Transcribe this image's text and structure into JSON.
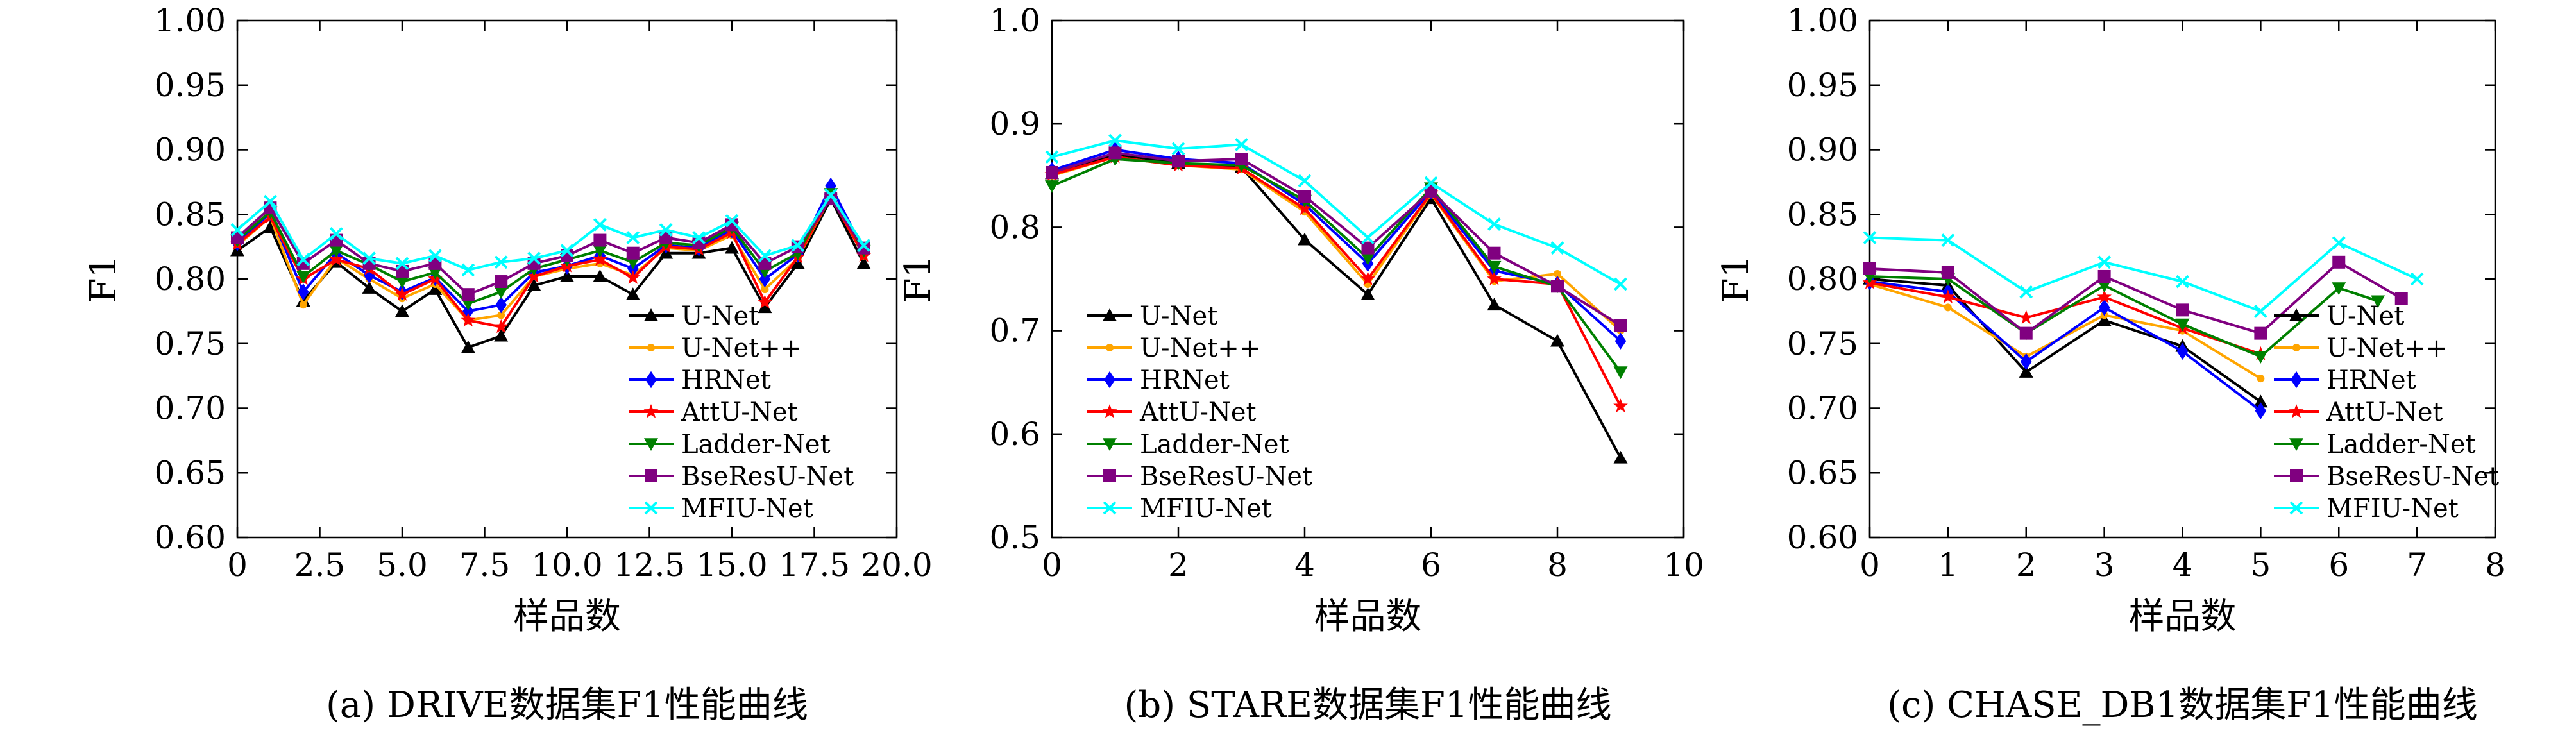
{
  "chart_data": [
    {
      "type": "line",
      "caption": "(a) DRIVE数据集F1性能曲线",
      "xlabel": "样品数",
      "ylabel": "F1",
      "xlim": [
        0,
        20
      ],
      "ylim": [
        0.6,
        1.0
      ],
      "xticks": [
        "0",
        "2.5",
        "5.0",
        "7.5",
        "10.0",
        "12.5",
        "15.0",
        "17.5",
        "20.0"
      ],
      "xtick_values": [
        0,
        2.5,
        5,
        7.5,
        10,
        12.5,
        15,
        17.5,
        20
      ],
      "yticks": [
        "0.60",
        "0.65",
        "0.70",
        "0.75",
        "0.80",
        "0.85",
        "0.90",
        "0.95",
        "1.00"
      ],
      "ytick_values": [
        0.6,
        0.65,
        0.7,
        0.75,
        0.8,
        0.85,
        0.9,
        0.95,
        1.0
      ],
      "legend_position": "lower-right",
      "x": [
        0,
        1,
        2,
        3,
        4,
        5,
        6,
        7,
        8,
        9,
        10,
        11,
        12,
        13,
        14,
        15,
        16,
        17,
        18,
        19
      ],
      "series": [
        {
          "name": "U-Net",
          "values": [
            0.822,
            0.84,
            0.783,
            0.813,
            0.793,
            0.775,
            0.792,
            0.747,
            0.756,
            0.795,
            0.802,
            0.802,
            0.788,
            0.82,
            0.82,
            0.824,
            0.778,
            0.812,
            0.862,
            0.812
          ]
        },
        {
          "name": "U-Net++",
          "values": [
            0.826,
            0.848,
            0.78,
            0.816,
            0.8,
            0.785,
            0.796,
            0.768,
            0.772,
            0.802,
            0.808,
            0.812,
            0.803,
            0.824,
            0.822,
            0.834,
            0.792,
            0.816,
            0.864,
            0.818
          ]
        },
        {
          "name": "HRNet",
          "values": [
            0.828,
            0.851,
            0.79,
            0.82,
            0.803,
            0.79,
            0.801,
            0.775,
            0.78,
            0.805,
            0.81,
            0.818,
            0.808,
            0.826,
            0.824,
            0.838,
            0.8,
            0.819,
            0.872,
            0.822
          ]
        },
        {
          "name": "AttU-Net",
          "values": [
            0.827,
            0.848,
            0.8,
            0.815,
            0.808,
            0.788,
            0.8,
            0.768,
            0.763,
            0.802,
            0.81,
            0.815,
            0.801,
            0.825,
            0.823,
            0.836,
            0.782,
            0.817,
            0.864,
            0.818
          ]
        },
        {
          "name": "Ladder-Net",
          "values": [
            0.83,
            0.852,
            0.802,
            0.822,
            0.811,
            0.798,
            0.805,
            0.781,
            0.79,
            0.808,
            0.815,
            0.822,
            0.813,
            0.828,
            0.826,
            0.84,
            0.806,
            0.82,
            0.866,
            0.822
          ]
        },
        {
          "name": "BseResU-Net",
          "values": [
            0.832,
            0.855,
            0.812,
            0.83,
            0.812,
            0.806,
            0.812,
            0.788,
            0.798,
            0.812,
            0.818,
            0.83,
            0.82,
            0.832,
            0.828,
            0.842,
            0.812,
            0.825,
            0.862,
            0.824
          ]
        },
        {
          "name": "MFIU-Net",
          "values": [
            0.838,
            0.86,
            0.815,
            0.835,
            0.816,
            0.812,
            0.818,
            0.807,
            0.813,
            0.816,
            0.822,
            0.842,
            0.832,
            0.838,
            0.832,
            0.845,
            0.818,
            0.826,
            0.865,
            0.826
          ]
        }
      ]
    },
    {
      "type": "line",
      "caption": "(b) STARE数据集F1性能曲线",
      "xlabel": "样品数",
      "ylabel": "F1",
      "xlim": [
        0,
        10
      ],
      "ylim": [
        0.5,
        1.0
      ],
      "xticks": [
        "0",
        "2",
        "4",
        "6",
        "8",
        "10"
      ],
      "xtick_values": [
        0,
        2,
        4,
        6,
        8,
        10
      ],
      "yticks": [
        "0.5",
        "0.6",
        "0.7",
        "0.8",
        "0.9",
        "1.0"
      ],
      "ytick_values": [
        0.5,
        0.6,
        0.7,
        0.8,
        0.9,
        1.0
      ],
      "legend_position": "lower-left",
      "x": [
        0,
        1,
        2,
        3,
        4,
        5,
        6,
        7,
        8,
        9
      ],
      "series": [
        {
          "name": "U-Net",
          "values": [
            0.852,
            0.87,
            0.862,
            0.858,
            0.788,
            0.735,
            0.828,
            0.725,
            0.69,
            0.577
          ]
        },
        {
          "name": "U-Net++",
          "values": [
            0.85,
            0.868,
            0.86,
            0.856,
            0.815,
            0.745,
            0.832,
            0.748,
            0.755,
            0.7
          ]
        },
        {
          "name": "HRNet",
          "values": [
            0.855,
            0.875,
            0.866,
            0.862,
            0.822,
            0.765,
            0.835,
            0.758,
            0.745,
            0.69
          ]
        },
        {
          "name": "AttU-Net",
          "values": [
            0.851,
            0.868,
            0.86,
            0.857,
            0.818,
            0.75,
            0.833,
            0.75,
            0.745,
            0.627
          ]
        },
        {
          "name": "Ladder-Net",
          "values": [
            0.84,
            0.866,
            0.862,
            0.86,
            0.826,
            0.77,
            0.838,
            0.762,
            0.743,
            0.66
          ]
        },
        {
          "name": "BseResU-Net",
          "values": [
            0.853,
            0.872,
            0.864,
            0.866,
            0.83,
            0.78,
            0.835,
            0.775,
            0.743,
            0.705
          ]
        },
        {
          "name": "MFIU-Net",
          "values": [
            0.868,
            0.884,
            0.876,
            0.88,
            0.845,
            0.79,
            0.843,
            0.803,
            0.78,
            0.745
          ]
        }
      ]
    },
    {
      "type": "line",
      "caption": "(c) CHASE_DB1数据集F1性能曲线",
      "xlabel": "样品数",
      "ylabel": "F1",
      "xlim": [
        0,
        8
      ],
      "ylim": [
        0.6,
        1.0
      ],
      "xticks": [
        "0",
        "1",
        "2",
        "3",
        "4",
        "5",
        "6",
        "7",
        "8"
      ],
      "xtick_values": [
        0,
        1,
        2,
        3,
        4,
        5,
        6,
        7,
        8
      ],
      "yticks": [
        "0.60",
        "0.65",
        "0.70",
        "0.75",
        "0.80",
        "0.85",
        "0.90",
        "0.95",
        "1.00"
      ],
      "ytick_values": [
        0.6,
        0.65,
        0.7,
        0.75,
        0.8,
        0.85,
        0.9,
        0.95,
        1.0
      ],
      "legend_position": "lower-right",
      "series": [
        {
          "name": "U-Net",
          "x": [
            0,
            1,
            2,
            3,
            4,
            5
          ],
          "values": [
            0.8,
            0.795,
            0.728,
            0.768,
            0.748,
            0.705
          ]
        },
        {
          "name": "U-Net++",
          "x": [
            0,
            1,
            2,
            3,
            4,
            5
          ],
          "values": [
            0.796,
            0.778,
            0.74,
            0.772,
            0.76,
            0.723
          ]
        },
        {
          "name": "HRNet",
          "x": [
            0,
            1,
            2,
            3,
            4,
            5
          ],
          "values": [
            0.798,
            0.79,
            0.736,
            0.778,
            0.744,
            0.698
          ]
        },
        {
          "name": "AttU-Net",
          "x": [
            0,
            1,
            2,
            3,
            4,
            5
          ],
          "values": [
            0.797,
            0.786,
            0.77,
            0.786,
            0.762,
            0.742
          ]
        },
        {
          "name": "Ladder-Net",
          "x": [
            0,
            1,
            2,
            3,
            4,
            5,
            6,
            6.5
          ],
          "values": [
            0.802,
            0.8,
            0.758,
            0.795,
            0.765,
            0.74,
            0.793,
            0.783
          ]
        },
        {
          "name": "BseResU-Net",
          "x": [
            0,
            1,
            2,
            3,
            4,
            5,
            6,
            6.8
          ],
          "values": [
            0.808,
            0.805,
            0.758,
            0.802,
            0.776,
            0.758,
            0.813,
            0.785
          ]
        },
        {
          "name": "MFIU-Net",
          "x": [
            0,
            1,
            2,
            3,
            4,
            5,
            6,
            7
          ],
          "values": [
            0.832,
            0.83,
            0.79,
            0.813,
            0.798,
            0.775,
            0.828,
            0.8
          ]
        }
      ]
    }
  ],
  "series_styles": [
    {
      "color": "#000000",
      "marker": "triangle-up"
    },
    {
      "color": "#ffa500",
      "marker": "dot"
    },
    {
      "color": "#0000ff",
      "marker": "diamond"
    },
    {
      "color": "#ff0000",
      "marker": "star"
    },
    {
      "color": "#008000",
      "marker": "triangle-down"
    },
    {
      "color": "#800080",
      "marker": "square"
    },
    {
      "color": "#00ffff",
      "marker": "x"
    }
  ]
}
